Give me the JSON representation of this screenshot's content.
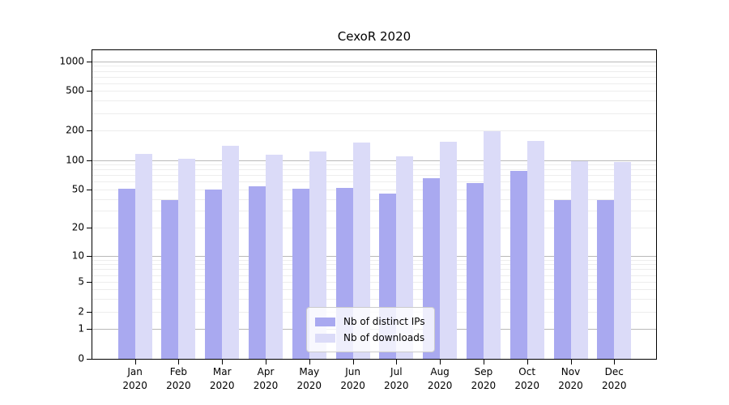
{
  "title": "CexoR 2020",
  "colors": {
    "distinct_ips": "#a9a9f0",
    "downloads": "#dbdbf8",
    "grid_major": "#b9b9b9",
    "grid_minor": "#ededed",
    "axis": "#000000"
  },
  "legend": {
    "items": [
      {
        "label": "Nb of distinct IPs",
        "series": "distinct_ips"
      },
      {
        "label": "Nb of downloads",
        "series": "downloads"
      }
    ]
  },
  "y_axis": {
    "tick_values": [
      1000,
      500,
      200,
      100,
      50,
      20,
      10,
      5,
      2,
      1,
      0
    ],
    "tick_labels": [
      "1000",
      "500",
      "200",
      "100",
      "50",
      "20",
      "10",
      "5",
      "2",
      "1",
      "0"
    ],
    "major_grid_values": [
      1,
      10,
      100,
      1000
    ],
    "minor_grid_values": [
      2,
      3,
      4,
      5,
      6,
      7,
      8,
      9,
      20,
      30,
      40,
      50,
      60,
      70,
      80,
      90,
      200,
      300,
      400,
      500,
      600,
      700,
      800,
      900
    ]
  },
  "x_axis": {
    "months": [
      "Jan",
      "Feb",
      "Mar",
      "Apr",
      "May",
      "Jun",
      "Jul",
      "Aug",
      "Sep",
      "Oct",
      "Nov",
      "Dec"
    ],
    "year": "2020"
  },
  "chart_data": {
    "type": "bar",
    "title": "CexoR 2020",
    "categories": [
      "Jan 2020",
      "Feb 2020",
      "Mar 2020",
      "Apr 2020",
      "May 2020",
      "Jun 2020",
      "Jul 2020",
      "Aug 2020",
      "Sep 2020",
      "Oct 2020",
      "Nov 2020",
      "Dec 2020"
    ],
    "series": [
      {
        "name": "Nb of distinct IPs",
        "values": [
          51,
          39,
          50,
          54,
          51,
          52,
          45,
          65,
          58,
          77,
          39,
          39
        ]
      },
      {
        "name": "Nb of downloads",
        "values": [
          116,
          104,
          140,
          113,
          122,
          152,
          110,
          154,
          198,
          156,
          98,
          96
        ]
      }
    ],
    "yscale": "log10(value+1)",
    "ylim": [
      0,
      1293
    ],
    "yticks": [
      0,
      1,
      2,
      5,
      10,
      20,
      50,
      100,
      200,
      500,
      1000
    ],
    "grid": true,
    "legend_position": "lower center"
  }
}
